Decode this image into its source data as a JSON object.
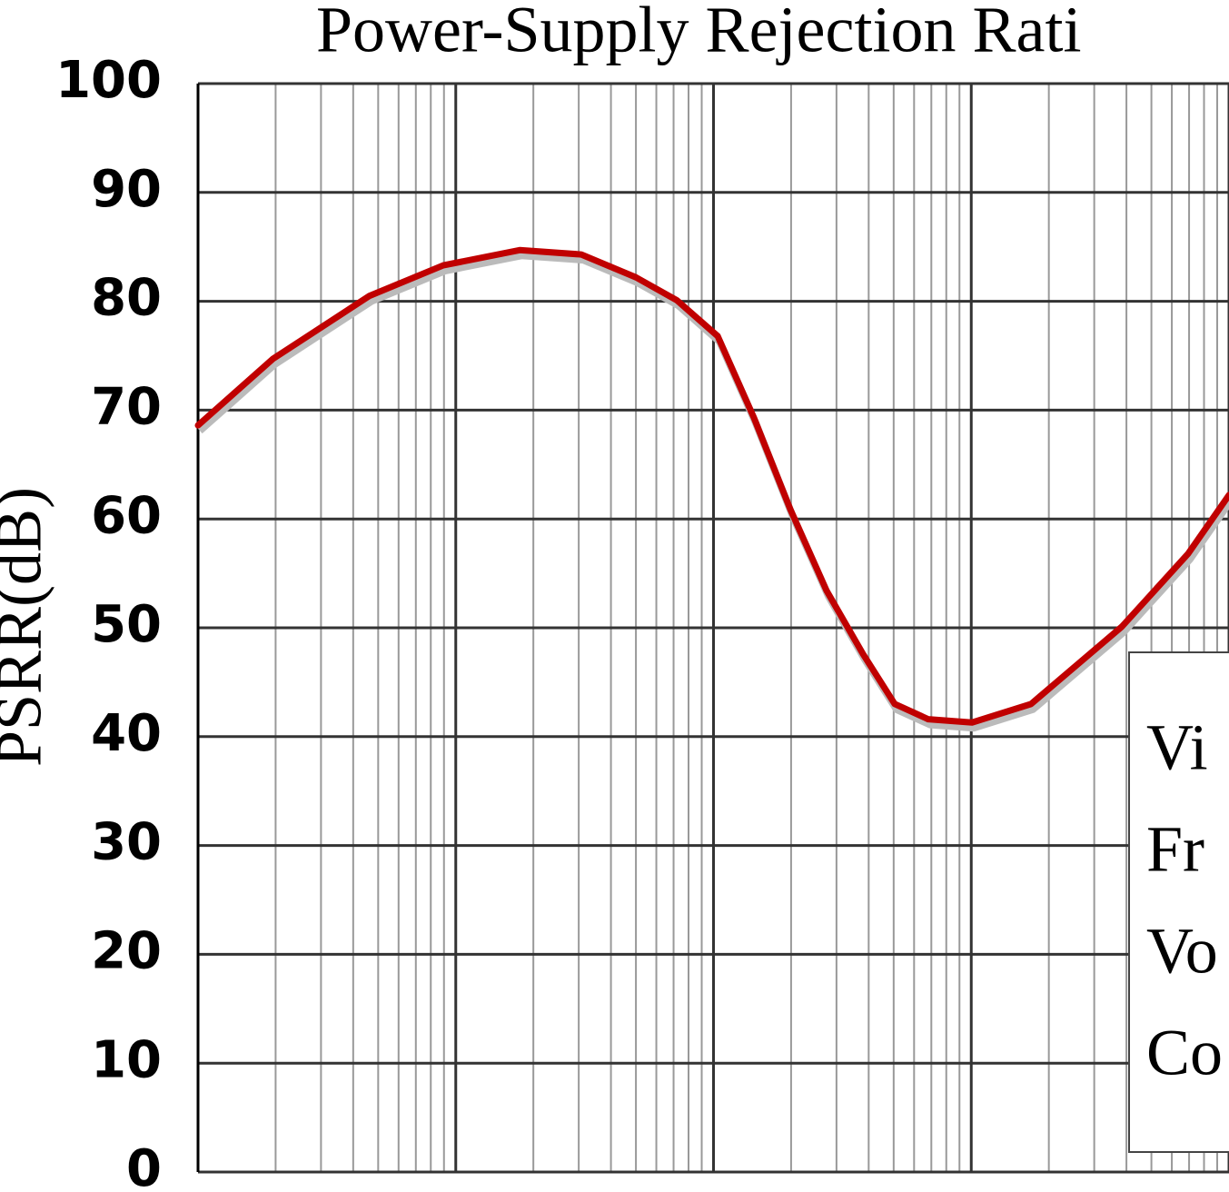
{
  "chart_data": {
    "type": "line",
    "title": "Power-Supply Rejection Rati",
    "ylabel": "PSRR(dB)",
    "x": [
      10,
      19.5,
      46.3,
      89.4,
      177,
      307,
      500,
      720,
      1038,
      1435,
      1985,
      2747,
      3800,
      5047,
      6810,
      10070,
      17060,
      38370,
      69370,
      100000
    ],
    "series": [
      {
        "color": "#c00000",
        "values": [
          68.6,
          74.7,
          80.5,
          83.3,
          84.7,
          84.3,
          82.2,
          80.1,
          76.8,
          69.3,
          60.9,
          53.4,
          47.6,
          43.0,
          41.6,
          41.3,
          43.0,
          50.1,
          56.8,
          62.2
        ]
      }
    ],
    "xscale": "log",
    "xlim": [
      10,
      100000
    ],
    "xticks": [
      10,
      100,
      1000,
      10000,
      100000
    ],
    "ylim": [
      0,
      100
    ],
    "yticks": [
      0,
      10,
      20,
      30,
      40,
      50,
      60,
      70,
      80,
      90,
      100
    ],
    "grid": true,
    "legend_lines": [
      "Vi",
      "Fr",
      "Vo",
      "Co"
    ]
  }
}
